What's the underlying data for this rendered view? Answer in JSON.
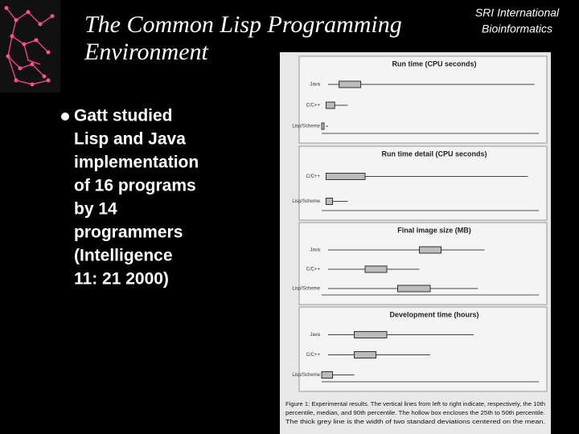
{
  "header": {
    "title_lines": [
      "The Common Lisp Programming",
      "Environment"
    ],
    "org_lines": [
      "SRI International",
      "Bioinformatics"
    ]
  },
  "bullet": {
    "lines": [
      "Gatt studied",
      "Lisp and Java",
      "implementation",
      "of 16 programs",
      "by 14",
      "programmers",
      "(Intelligence",
      "11: 21 2000)"
    ]
  },
  "figure": {
    "panels": [
      {
        "title": "Run time (CPU seconds)",
        "rows": [
          "Java",
          "C/C++",
          "Lisp/Scheme"
        ]
      },
      {
        "title": "Run time detail (CPU seconds)",
        "rows": [
          "C/C++",
          "Lisp/Scheme"
        ]
      },
      {
        "title": "Final image size (MB)",
        "rows": [
          "Java",
          "C/C++",
          "Lisp/Scheme"
        ]
      },
      {
        "title": "Development time (hours)",
        "rows": [
          "Java",
          "C/C++",
          "Lisp/Scheme"
        ]
      }
    ],
    "caption_lines": [
      "Figure 1: Experimental results. The vertical lines from left to right indicate, respectively, the 10th",
      "percentile, median, and 90th percentile. The hollow box encloses the 25th to 50th percentile.",
      "The thick grey line is the width of two standard deviations centered on the mean."
    ]
  }
}
